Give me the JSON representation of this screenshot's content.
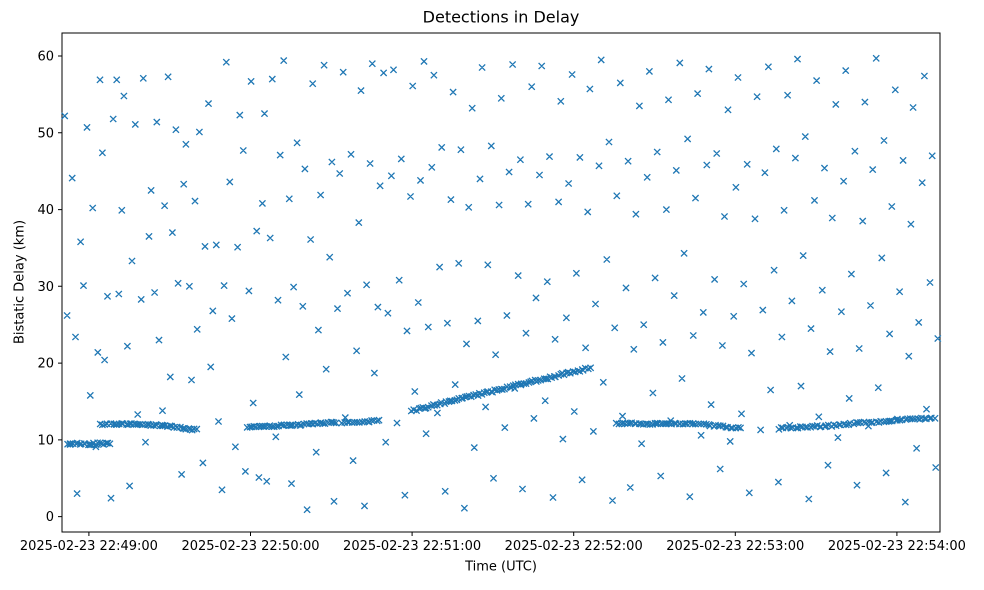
{
  "title": "Detections in Delay",
  "xlabel": "Time (UTC)",
  "ylabel": "Bistatic Delay (km)",
  "chart_data": {
    "type": "scatter",
    "title": "Detections in Delay",
    "xlabel": "Time (UTC)",
    "ylabel": "Bistatic Delay (km)",
    "marker": "x",
    "marker_color": "#1f77b4",
    "grid": false,
    "legend": "none",
    "x_unit": "seconds relative to 2025-02-23 22:49:00 UTC",
    "xlim": [
      -10,
      316
    ],
    "ylim": [
      -2,
      63
    ],
    "x_ticks": [
      0,
      60,
      120,
      180,
      240,
      300
    ],
    "x_tick_labels": [
      "2025-02-23 22:49:00",
      "2025-02-23 22:50:00",
      "2025-02-23 22:51:00",
      "2025-02-23 22:52:00",
      "2025-02-23 22:53:00",
      "2025-02-23 22:54:00"
    ],
    "y_ticks": [
      0,
      10,
      20,
      30,
      40,
      50,
      60
    ],
    "y_tick_labels": [
      "0",
      "10",
      "20",
      "30",
      "40",
      "50",
      "60"
    ],
    "points": [
      [
        -9,
        52.2
      ],
      [
        -8.1,
        26.2
      ],
      [
        -7,
        9.4
      ],
      [
        -6.2,
        44.1
      ],
      [
        -5,
        23.4
      ],
      [
        -4.4,
        3
      ],
      [
        -3.1,
        35.8
      ],
      [
        -2,
        30.1
      ],
      [
        -0.7,
        50.7
      ],
      [
        0.5,
        15.8
      ],
      [
        1.4,
        40.2
      ],
      [
        2.6,
        9.1
      ],
      [
        3.3,
        21.4
      ],
      [
        4.1,
        56.9
      ],
      [
        5,
        47.4
      ],
      [
        5.8,
        20.4
      ],
      [
        6.9,
        28.7
      ],
      [
        8.2,
        2.4
      ],
      [
        9,
        51.8
      ],
      [
        10.3,
        56.9
      ],
      [
        11.1,
        29
      ],
      [
        12.2,
        39.9
      ],
      [
        13,
        54.8
      ],
      [
        14.3,
        22.2
      ],
      [
        15.1,
        4
      ],
      [
        16,
        33.3
      ],
      [
        17.2,
        51.1
      ],
      [
        18.1,
        13.3
      ],
      [
        19.4,
        28.3
      ],
      [
        20.2,
        57.1
      ],
      [
        21,
        9.7
      ],
      [
        22.3,
        36.5
      ],
      [
        23.1,
        42.5
      ],
      [
        24.4,
        29.2
      ],
      [
        25.2,
        51.4
      ],
      [
        26,
        23
      ],
      [
        27.3,
        13.8
      ],
      [
        28.1,
        40.5
      ],
      [
        29.4,
        57.3
      ],
      [
        30.2,
        18.2
      ],
      [
        31,
        37
      ],
      [
        32.3,
        50.4
      ],
      [
        33.1,
        30.4
      ],
      [
        34.4,
        5.5
      ],
      [
        35.2,
        43.3
      ],
      [
        36,
        48.5
      ],
      [
        37.3,
        30
      ],
      [
        38.1,
        17.8
      ],
      [
        39.4,
        41.1
      ],
      [
        40.2,
        24.4
      ],
      [
        41,
        50.1
      ],
      [
        42.3,
        7
      ],
      [
        43.1,
        35.2
      ],
      [
        44.4,
        53.8
      ],
      [
        45.2,
        19.5
      ],
      [
        46,
        26.8
      ],
      [
        47.3,
        35.4
      ],
      [
        48.1,
        12.4
      ],
      [
        49.4,
        3.5
      ],
      [
        50.2,
        30.1
      ],
      [
        51,
        59.2
      ],
      [
        52.3,
        43.6
      ],
      [
        53.1,
        25.8
      ],
      [
        54.4,
        9.1
      ],
      [
        55.2,
        35.1
      ],
      [
        56,
        52.3
      ],
      [
        57.3,
        47.7
      ],
      [
        58.1,
        5.9
      ],
      [
        59.4,
        29.4
      ],
      [
        60.2,
        56.7
      ],
      [
        61,
        14.8
      ],
      [
        62.3,
        37.2
      ],
      [
        63.1,
        5.1
      ],
      [
        64.4,
        40.8
      ],
      [
        65.2,
        52.5
      ],
      [
        66,
        4.6
      ],
      [
        67.3,
        36.3
      ],
      [
        68.1,
        57
      ],
      [
        69.4,
        10.4
      ],
      [
        70.2,
        28.2
      ],
      [
        71,
        47.1
      ],
      [
        72.3,
        59.4
      ],
      [
        73.1,
        20.8
      ],
      [
        74.4,
        41.4
      ],
      [
        75.2,
        4.3
      ],
      [
        76,
        29.9
      ],
      [
        77.3,
        48.7
      ],
      [
        78.1,
        15.9
      ],
      [
        79.4,
        27.4
      ],
      [
        80.2,
        45.3
      ],
      [
        81,
        0.9
      ],
      [
        82.3,
        36.1
      ],
      [
        83.1,
        56.4
      ],
      [
        84.4,
        8.4
      ],
      [
        85.2,
        24.3
      ],
      [
        86,
        41.9
      ],
      [
        87.3,
        58.8
      ],
      [
        88.1,
        19.2
      ],
      [
        89.4,
        33.8
      ],
      [
        90.2,
        46.2
      ],
      [
        91,
        2
      ],
      [
        92.3,
        27.1
      ],
      [
        93.1,
        44.7
      ],
      [
        94.4,
        57.9
      ],
      [
        95.2,
        12.9
      ],
      [
        96,
        29.1
      ],
      [
        97.3,
        47.2
      ],
      [
        98.1,
        7.3
      ],
      [
        99.4,
        21.6
      ],
      [
        100.2,
        38.3
      ],
      [
        101,
        55.5
      ],
      [
        102.3,
        1.4
      ],
      [
        103.1,
        30.2
      ],
      [
        104.4,
        46
      ],
      [
        105.2,
        59
      ],
      [
        106,
        18.7
      ],
      [
        107.3,
        27.3
      ],
      [
        108.1,
        43.1
      ],
      [
        109.4,
        57.8
      ],
      [
        110.2,
        9.7
      ],
      [
        111,
        26.5
      ],
      [
        112.3,
        44.4
      ],
      [
        113.1,
        58.2
      ],
      [
        114.4,
        12.2
      ],
      [
        115.2,
        30.8
      ],
      [
        116,
        46.6
      ],
      [
        117.3,
        2.8
      ],
      [
        118.1,
        24.2
      ],
      [
        119.4,
        41.7
      ],
      [
        120.2,
        56.1
      ],
      [
        121,
        16.3
      ],
      [
        122.3,
        27.9
      ],
      [
        123.1,
        43.8
      ],
      [
        124.4,
        59.3
      ],
      [
        125.2,
        10.8
      ],
      [
        126,
        24.7
      ],
      [
        127.3,
        45.5
      ],
      [
        128.1,
        57.5
      ],
      [
        129.4,
        13.5
      ],
      [
        130.2,
        32.5
      ],
      [
        131,
        48.1
      ],
      [
        132.3,
        3.3
      ],
      [
        133.1,
        25.2
      ],
      [
        134.4,
        41.3
      ],
      [
        135.2,
        55.3
      ],
      [
        136,
        17.2
      ],
      [
        137.3,
        33
      ],
      [
        138.1,
        47.8
      ],
      [
        139.4,
        1.1
      ],
      [
        140.2,
        22.5
      ],
      [
        141,
        40.3
      ],
      [
        142.3,
        53.2
      ],
      [
        143.1,
        9
      ],
      [
        144.4,
        25.5
      ],
      [
        145.2,
        44
      ],
      [
        146,
        58.5
      ],
      [
        147.3,
        14.3
      ],
      [
        148.1,
        32.8
      ],
      [
        149.4,
        48.3
      ],
      [
        150.2,
        5
      ],
      [
        151,
        21.1
      ],
      [
        152.3,
        40.6
      ],
      [
        153.1,
        54.5
      ],
      [
        154.4,
        11.6
      ],
      [
        155.2,
        26.2
      ],
      [
        156,
        44.9
      ],
      [
        157.3,
        58.9
      ],
      [
        158.1,
        16.7
      ],
      [
        159.4,
        31.4
      ],
      [
        160.2,
        46.5
      ],
      [
        161,
        3.6
      ],
      [
        162.3,
        23.9
      ],
      [
        163.1,
        40.7
      ],
      [
        164.4,
        56
      ],
      [
        165.2,
        12.8
      ],
      [
        166,
        28.5
      ],
      [
        167.3,
        44.5
      ],
      [
        168.1,
        58.7
      ],
      [
        169.4,
        15.1
      ],
      [
        170.2,
        30.6
      ],
      [
        171,
        46.9
      ],
      [
        172.3,
        2.5
      ],
      [
        173.1,
        23.1
      ],
      [
        174.4,
        41
      ],
      [
        175.2,
        54.1
      ],
      [
        176,
        10.1
      ],
      [
        177.3,
        25.9
      ],
      [
        178.1,
        43.4
      ],
      [
        179.4,
        57.6
      ],
      [
        180.2,
        13.7
      ],
      [
        181,
        31.7
      ],
      [
        182.3,
        46.8
      ],
      [
        183.1,
        4.8
      ],
      [
        184.4,
        22
      ],
      [
        185.2,
        39.7
      ],
      [
        186,
        55.7
      ],
      [
        187.3,
        11.1
      ],
      [
        188.1,
        27.7
      ],
      [
        189.4,
        45.7
      ],
      [
        190.2,
        59.5
      ],
      [
        191,
        17.5
      ],
      [
        192.3,
        33.5
      ],
      [
        193.1,
        48.8
      ],
      [
        194.4,
        2.1
      ],
      [
        195.2,
        24.6
      ],
      [
        196,
        41.8
      ],
      [
        197.3,
        56.5
      ],
      [
        198.1,
        13.1
      ],
      [
        199.4,
        29.8
      ],
      [
        200.2,
        46.3
      ],
      [
        201,
        3.8
      ],
      [
        202.3,
        21.8
      ],
      [
        203.1,
        39.4
      ],
      [
        204.4,
        53.5
      ],
      [
        205.2,
        9.5
      ],
      [
        206,
        25
      ],
      [
        207.3,
        44.2
      ],
      [
        208.1,
        58
      ],
      [
        209.4,
        16.1
      ],
      [
        210.2,
        31.1
      ],
      [
        211,
        47.5
      ],
      [
        212.3,
        5.3
      ],
      [
        213.1,
        22.7
      ],
      [
        214.4,
        40
      ],
      [
        215.2,
        54.3
      ],
      [
        216,
        12.5
      ],
      [
        217.3,
        28.8
      ],
      [
        218.1,
        45.1
      ],
      [
        219.4,
        59.1
      ],
      [
        220.2,
        18
      ],
      [
        221,
        34.3
      ],
      [
        222.3,
        49.2
      ],
      [
        223.1,
        2.6
      ],
      [
        224.4,
        23.6
      ],
      [
        225.2,
        41.5
      ],
      [
        226,
        55.1
      ],
      [
        227.3,
        10.6
      ],
      [
        228.1,
        26.6
      ],
      [
        229.4,
        45.8
      ],
      [
        230.2,
        58.3
      ],
      [
        231,
        14.6
      ],
      [
        232.3,
        30.9
      ],
      [
        233.1,
        47.3
      ],
      [
        234.4,
        6.2
      ],
      [
        235.2,
        22.3
      ],
      [
        236,
        39.1
      ],
      [
        237.3,
        53
      ],
      [
        238.1,
        9.8
      ],
      [
        239.4,
        26.1
      ],
      [
        240.2,
        42.9
      ],
      [
        241,
        57.2
      ],
      [
        242.3,
        13.4
      ],
      [
        243.1,
        30.3
      ],
      [
        244.4,
        45.9
      ],
      [
        245.2,
        3.1
      ],
      [
        246,
        21.3
      ],
      [
        247.3,
        38.8
      ],
      [
        248.1,
        54.7
      ],
      [
        249.4,
        11.3
      ],
      [
        250.2,
        26.9
      ],
      [
        251,
        44.8
      ],
      [
        252.3,
        58.6
      ],
      [
        253.1,
        16.5
      ],
      [
        254.4,
        32.1
      ],
      [
        255.2,
        47.9
      ],
      [
        256,
        4.5
      ],
      [
        257.3,
        23.4
      ],
      [
        258.1,
        39.9
      ],
      [
        259.4,
        54.9
      ],
      [
        260.2,
        11.9
      ],
      [
        261,
        28.1
      ],
      [
        262.3,
        46.7
      ],
      [
        263.1,
        59.6
      ],
      [
        264.4,
        17
      ],
      [
        265.2,
        34
      ],
      [
        266,
        49.5
      ],
      [
        267.3,
        2.3
      ],
      [
        268.1,
        24.5
      ],
      [
        269.4,
        41.2
      ],
      [
        270.2,
        56.8
      ],
      [
        271,
        13
      ],
      [
        272.3,
        29.5
      ],
      [
        273.1,
        45.4
      ],
      [
        274.4,
        6.7
      ],
      [
        275.2,
        21.5
      ],
      [
        276,
        38.9
      ],
      [
        277.3,
        53.7
      ],
      [
        278.1,
        10.3
      ],
      [
        279.4,
        26.7
      ],
      [
        280.2,
        43.7
      ],
      [
        281,
        58.1
      ],
      [
        282.3,
        15.4
      ],
      [
        283.1,
        31.6
      ],
      [
        284.4,
        47.6
      ],
      [
        285.2,
        4.1
      ],
      [
        286,
        21.9
      ],
      [
        287.3,
        38.5
      ],
      [
        288.1,
        54
      ],
      [
        289.4,
        11.8
      ],
      [
        290.2,
        27.5
      ],
      [
        291,
        45.2
      ],
      [
        292.3,
        59.7
      ],
      [
        293.1,
        16.8
      ],
      [
        294.4,
        33.7
      ],
      [
        295.2,
        49
      ],
      [
        296,
        5.7
      ],
      [
        297.3,
        23.8
      ],
      [
        298.1,
        40.4
      ],
      [
        299.4,
        55.6
      ],
      [
        300.2,
        12.7
      ],
      [
        301,
        29.3
      ],
      [
        302.3,
        46.4
      ],
      [
        303.1,
        1.9
      ],
      [
        304.4,
        20.9
      ],
      [
        305.2,
        38.1
      ],
      [
        306,
        53.3
      ],
      [
        307.3,
        8.9
      ],
      [
        308.1,
        25.3
      ],
      [
        309.4,
        43.5
      ],
      [
        310.2,
        57.4
      ],
      [
        311,
        14
      ],
      [
        312.3,
        30.5
      ],
      [
        313.1,
        47
      ],
      [
        314.4,
        6.4
      ],
      [
        315.2,
        23.2
      ]
    ],
    "tracks": [
      {
        "t0": -8,
        "t1": 8,
        "y0": 9.45,
        "y1": 9.55,
        "n": 22,
        "jitter": 0.15
      },
      {
        "t0": 4,
        "t1": 9,
        "y0": 12.0,
        "y1": 12.1,
        "n": 6,
        "jitter": 0.1
      },
      {
        "t0": 9,
        "t1": 27,
        "y0": 12.1,
        "y1": 11.9,
        "n": 24,
        "jitter": 0.1
      },
      {
        "t0": 27,
        "t1": 40,
        "y0": 11.9,
        "y1": 11.3,
        "n": 18,
        "jitter": 0.1
      },
      {
        "t0": 59,
        "t1": 75,
        "y0": 11.7,
        "y1": 11.9,
        "n": 22,
        "jitter": 0.12
      },
      {
        "t0": 75,
        "t1": 92,
        "y0": 11.9,
        "y1": 12.3,
        "n": 22,
        "jitter": 0.1
      },
      {
        "t0": 94,
        "t1": 108,
        "y0": 12.2,
        "y1": 12.5,
        "n": 16,
        "jitter": 0.1
      },
      {
        "t0": 120,
        "t1": 186,
        "y0": 13.8,
        "y1": 19.4,
        "n": 85,
        "jitter": 0.15
      },
      {
        "t0": 196,
        "t1": 228,
        "y0": 12.15,
        "y1": 12.05,
        "n": 40,
        "jitter": 0.1
      },
      {
        "t0": 228,
        "t1": 242,
        "y0": 12.0,
        "y1": 11.5,
        "n": 16,
        "jitter": 0.1
      },
      {
        "t0": 256,
        "t1": 282,
        "y0": 11.5,
        "y1": 12.0,
        "n": 30,
        "jitter": 0.12
      },
      {
        "t0": 282,
        "t1": 314,
        "y0": 12.1,
        "y1": 12.9,
        "n": 36,
        "jitter": 0.12
      }
    ]
  }
}
